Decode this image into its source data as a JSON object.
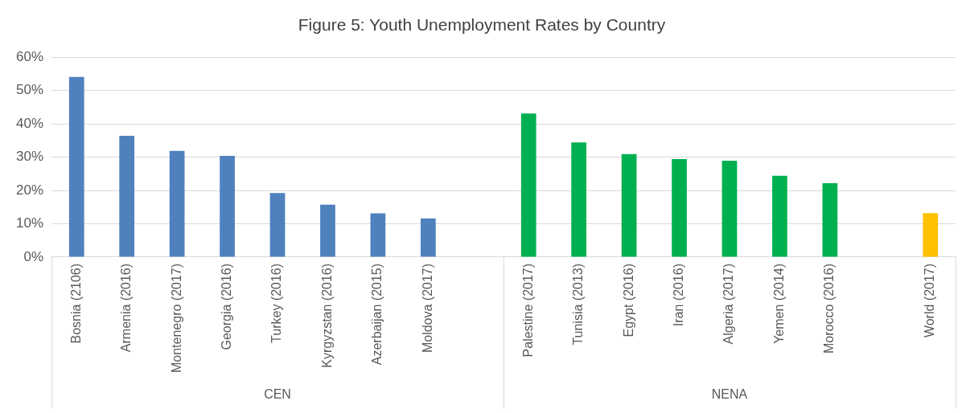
{
  "chart_data": {
    "type": "bar",
    "title": "Figure 5: Youth Unemployment Rates by Country",
    "categories": [
      "Bosnia (2106)",
      "Armenia (2016)",
      "Montenegro (2017)",
      "Georgia (2016)",
      "Turkey (2016)",
      "Kyrgyzstan (2016)",
      "Azerbaijan (2015)",
      "Moldova (2017)",
      null,
      "Palestine (2017)",
      "Tunisia (2013)",
      "Egypt (2016)",
      "Iran (2016)",
      "Algeria (2017)",
      "Yemen (2014)",
      "Morocco (2016)",
      null,
      "World (2017)"
    ],
    "values": [
      54.1,
      36.4,
      31.9,
      30.4,
      19.2,
      15.7,
      13.1,
      11.6,
      null,
      43.1,
      34.4,
      30.9,
      29.4,
      28.9,
      24.4,
      22.2,
      null,
      13.2
    ],
    "colors": [
      "#4f81bd",
      "#4f81bd",
      "#4f81bd",
      "#4f81bd",
      "#4f81bd",
      "#4f81bd",
      "#4f81bd",
      "#4f81bd",
      "#4f81bd",
      "#00b050",
      "#00b050",
      "#00b050",
      "#00b050",
      "#00b050",
      "#00b050",
      "#00b050",
      "#00b050",
      "#ffc000"
    ],
    "ylim": [
      0,
      60
    ],
    "yticks": [
      {
        "value": 0,
        "label": "0%"
      },
      {
        "value": 10,
        "label": "10%"
      },
      {
        "value": 20,
        "label": "20%"
      },
      {
        "value": 30,
        "label": "30%"
      },
      {
        "value": 40,
        "label": "40%"
      },
      {
        "value": 50,
        "label": "50%"
      },
      {
        "value": 60,
        "label": "60%"
      }
    ],
    "grid": "y",
    "annotations": [
      "CEN",
      "NENA"
    ]
  }
}
